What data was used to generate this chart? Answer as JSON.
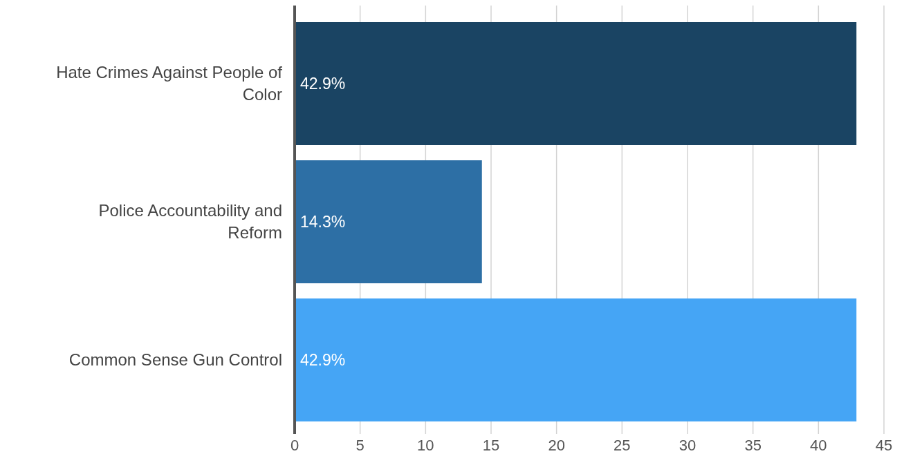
{
  "chart_data": {
    "type": "bar",
    "orientation": "horizontal",
    "categories": [
      "Hate Crimes Against People of Color",
      "Police Accountability and Reform",
      "Common Sense Gun Control"
    ],
    "values": [
      42.9,
      14.3,
      42.9
    ],
    "colors": [
      "#1a4463",
      "#2d6fa5",
      "#45a5f5"
    ],
    "value_labels": [
      "42.9%",
      "14.3%",
      "42.9%"
    ],
    "xlim": [
      0,
      45
    ],
    "xticks": [
      0,
      5,
      10,
      15,
      20,
      25,
      30,
      35,
      40,
      45
    ],
    "grid": "x"
  }
}
